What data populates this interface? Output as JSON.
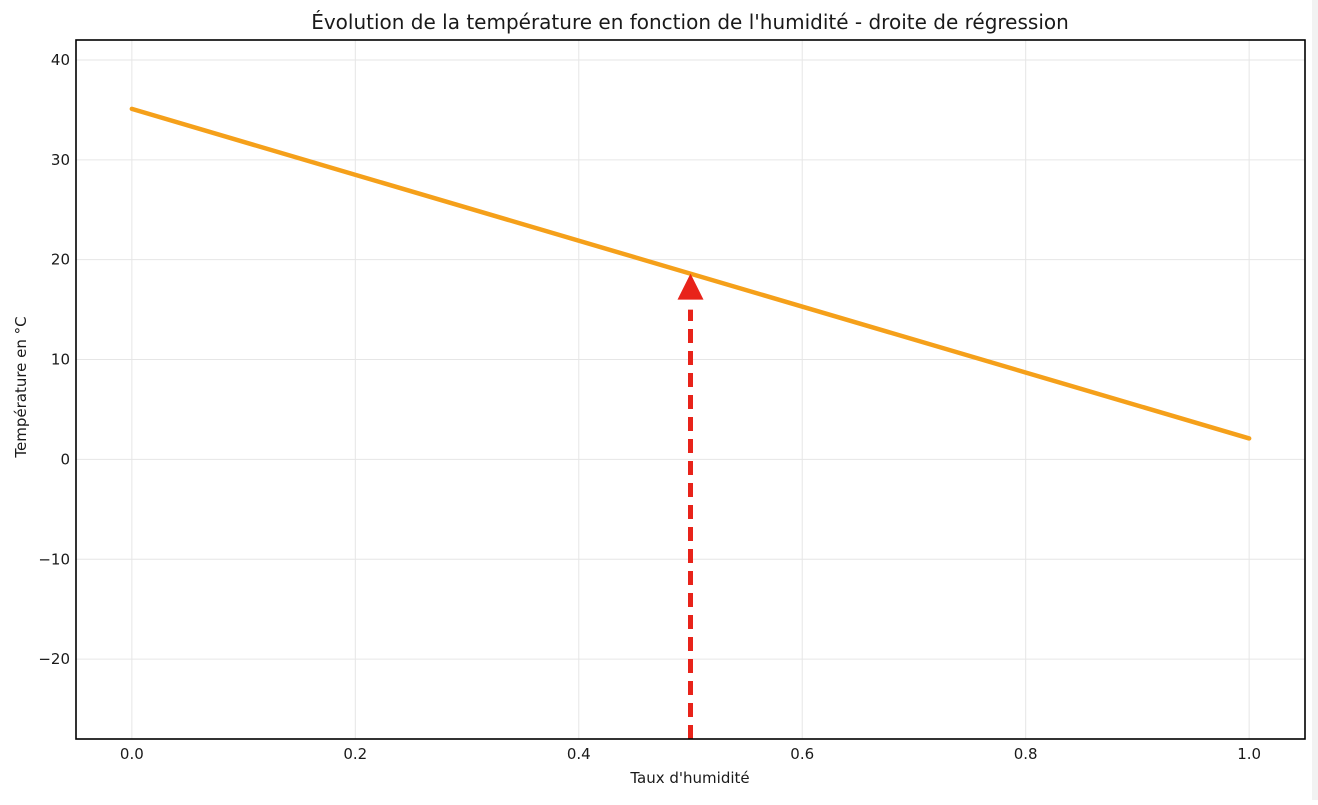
{
  "chart_data": {
    "type": "line",
    "title": "Évolution de la température en fonction de l'humidité - droite de régression",
    "xlabel": "Taux d'humidité",
    "ylabel": "Température en °C",
    "xlim": [
      -0.05,
      1.05
    ],
    "ylim": [
      -28,
      42
    ],
    "x_ticks": [
      0.0,
      0.2,
      0.4,
      0.6,
      0.8,
      1.0
    ],
    "x_tick_labels": [
      "0.0",
      "0.2",
      "0.4",
      "0.6",
      "0.8",
      "1.0"
    ],
    "y_ticks": [
      -20,
      -10,
      0,
      10,
      20,
      30,
      40
    ],
    "y_tick_labels": [
      "−20",
      "−10",
      "0",
      "10",
      "20",
      "30",
      "40"
    ],
    "grid": true,
    "series": [
      {
        "type": "line",
        "color": "#f5a01a",
        "x": [
          0.0,
          1.0
        ],
        "y": [
          35.1,
          2.1
        ]
      }
    ],
    "annotations": [
      {
        "type": "arrow",
        "style": "dashed",
        "color": "#e8231a",
        "x": 0.5,
        "y_from": -28,
        "y_to": 18.6
      }
    ]
  }
}
